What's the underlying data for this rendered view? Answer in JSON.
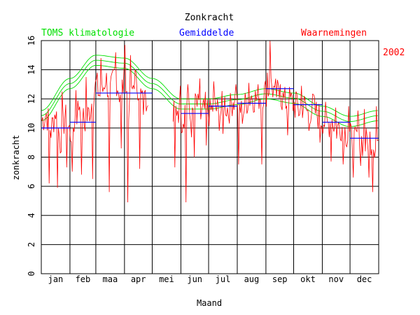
{
  "chart_data": {
    "type": "line",
    "title": "Zonkracht",
    "xlabel": "Maand",
    "ylabel": "zonkracht",
    "year": "2002",
    "ylim": [
      0,
      16
    ],
    "yticks": [
      "0",
      "2",
      "4",
      "6",
      "8",
      "10",
      "12",
      "14",
      "16"
    ],
    "months": [
      "jan",
      "feb",
      "maa",
      "apr",
      "mei",
      "jun",
      "jul",
      "aug",
      "sep",
      "okt",
      "nov",
      "dec"
    ],
    "legend": {
      "climatology": "TOMS klimatologie",
      "average": "Gemiddelde",
      "observations": "Waarnemingen"
    },
    "colors": {
      "climatology": "#00e000",
      "average": "#0000ff",
      "observations": "#ff0000",
      "grid": "#000000"
    },
    "climatology_lower_anchors": {
      "day": [
        0,
        31,
        59,
        90,
        120,
        151,
        181,
        212,
        243,
        273,
        304,
        334,
        365
      ],
      "value": [
        10.5,
        12.7,
        14.3,
        14.1,
        12.7,
        11.3,
        11.3,
        11.6,
        12.0,
        11.7,
        10.8,
        10.1,
        10.5
      ]
    },
    "climatology_offsets": [
      0,
      0.35,
      0.7
    ],
    "monthly_averages": [
      10.0,
      10.4,
      12.4,
      12.4,
      null,
      11.0,
      11.5,
      11.7,
      12.7,
      11.6,
      10.4,
      9.3
    ],
    "observation_anchors": {
      "day": [
        0,
        5,
        10,
        15,
        20,
        25,
        31,
        36,
        41,
        46,
        51,
        56,
        59,
        64,
        69,
        74,
        79,
        84,
        90,
        95,
        100,
        105,
        110,
        115,
        142,
        147,
        152,
        157,
        162,
        167,
        172,
        177,
        182,
        187,
        192,
        197,
        202,
        207,
        212,
        217,
        222,
        227,
        232,
        237,
        243,
        248,
        253,
        258,
        263,
        268,
        273,
        278,
        283,
        288,
        293,
        298,
        304,
        309,
        314,
        319,
        324,
        329,
        334,
        339,
        344,
        349,
        354,
        359,
        364
      ],
      "value": [
        10.5,
        11.0,
        9.8,
        11.2,
        9.0,
        10.8,
        9.6,
        10.5,
        11.8,
        10.2,
        11.0,
        12.3,
        13.0,
        12.0,
        13.5,
        12.2,
        13.8,
        12.4,
        13.2,
        11.0,
        13.5,
        12.8,
        11.5,
        12.6,
        10.8,
        11.5,
        10.4,
        12.0,
        10.2,
        11.8,
        10.6,
        11.4,
        11.0,
        11.6,
        10.8,
        11.9,
        11.2,
        12.0,
        11.7,
        11.0,
        11.9,
        12.2,
        12.0,
        12.3,
        12.5,
        12.9,
        12.4,
        12.2,
        11.8,
        11.9,
        11.6,
        11.2,
        11.6,
        11.0,
        11.4,
        10.9,
        10.6,
        10.2,
        10.6,
        9.9,
        10.2,
        9.7,
        9.3,
        9.0,
        9.5,
        8.7,
        9.4,
        8.9,
        9.1
      ]
    },
    "observation_gap_days": [
      116,
      141
    ],
    "observation_spikes": {
      "day": [
        8,
        17,
        22,
        27,
        33,
        37,
        43,
        48,
        55,
        64,
        73,
        80,
        86,
        90,
        93,
        96,
        102,
        106,
        112,
        144,
        150,
        156,
        158,
        165,
        171,
        178,
        186,
        196,
        204,
        210,
        213,
        224,
        238,
        244,
        247,
        252,
        258,
        266,
        275,
        281,
        289,
        294,
        301,
        307,
        313,
        318,
        326,
        332,
        337,
        342,
        345,
        349,
        354,
        358,
        362
      ],
      "value": [
        6.2,
        5.9,
        12.5,
        7.3,
        7.0,
        12.6,
        6.8,
        13.5,
        6.5,
        14.8,
        5.6,
        15.2,
        8.6,
        15.7,
        4.9,
        15.0,
        13.8,
        7.2,
        12.6,
        7.3,
        12.9,
        4.9,
        13.0,
        8.0,
        13.4,
        8.8,
        13.2,
        9.6,
        12.4,
        13.0,
        7.5,
        13.1,
        7.5,
        13.8,
        16.0,
        12.8,
        13.0,
        9.5,
        12.5,
        12.9,
        9.8,
        12.3,
        9.0,
        11.8,
        7.7,
        11.4,
        7.5,
        11.5,
        6.6,
        11.2,
        7.4,
        11.3,
        6.6,
        5.6,
        11.5
      ]
    }
  }
}
